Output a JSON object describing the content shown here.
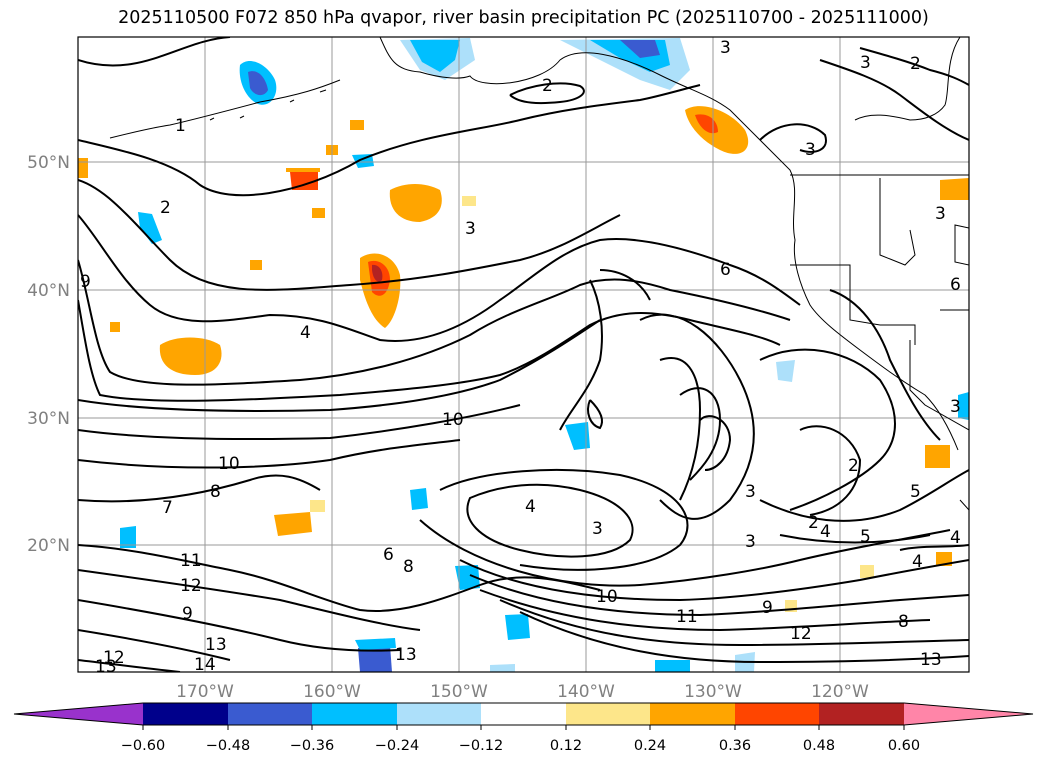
{
  "title": "2025110500 F072 850 hPa qvapor, river basin precipitation PC (2025110700 - 2025111000)",
  "lat_labels": [
    "50°N",
    "40°N",
    "30°N",
    "20°N"
  ],
  "lon_labels": [
    "170°W",
    "160°W",
    "150°W",
    "140°W",
    "130°W",
    "120°W"
  ],
  "colorbar": {
    "ticks": [
      "−0.60",
      "−0.48",
      "−0.36",
      "−0.24",
      "−0.12",
      "0.12",
      "0.24",
      "0.36",
      "0.48",
      "0.60"
    ],
    "colors": {
      "under": "#9932cc",
      "c1": "#00008b",
      "c2": "#3a5bd0",
      "c3": "#00bfff",
      "c4": "#ade0fa",
      "c5": "#ffffff",
      "c6": "#fde68a",
      "c7": "#ffa500",
      "c8": "#ff4500",
      "c9": "#b22222",
      "over": "#ff85a8"
    }
  },
  "contour_labels": [
    {
      "text": "3"
    },
    {
      "text": "2"
    },
    {
      "text": "1"
    },
    {
      "text": "2"
    },
    {
      "text": "3"
    },
    {
      "text": "2"
    },
    {
      "text": "3"
    },
    {
      "text": "3"
    },
    {
      "text": "3"
    },
    {
      "text": "6"
    },
    {
      "text": "4"
    },
    {
      "text": "10"
    },
    {
      "text": "10"
    },
    {
      "text": "8"
    },
    {
      "text": "7"
    },
    {
      "text": "4"
    },
    {
      "text": "3"
    },
    {
      "text": "3"
    },
    {
      "text": "2"
    },
    {
      "text": "3"
    },
    {
      "text": "4"
    },
    {
      "text": "5"
    },
    {
      "text": "4"
    },
    {
      "text": "5"
    },
    {
      "text": "4"
    },
    {
      "text": "11"
    },
    {
      "text": "12"
    },
    {
      "text": "9"
    },
    {
      "text": "13"
    },
    {
      "text": "14"
    },
    {
      "text": "13"
    },
    {
      "text": "12"
    },
    {
      "text": "13"
    },
    {
      "text": "10"
    },
    {
      "text": "11"
    },
    {
      "text": "9"
    },
    {
      "text": "12"
    },
    {
      "text": "8"
    },
    {
      "text": "13"
    },
    {
      "text": "8"
    },
    {
      "text": "6"
    },
    {
      "text": "3"
    },
    {
      "text": "9"
    },
    {
      "text": "2"
    },
    {
      "text": "6"
    }
  ]
}
